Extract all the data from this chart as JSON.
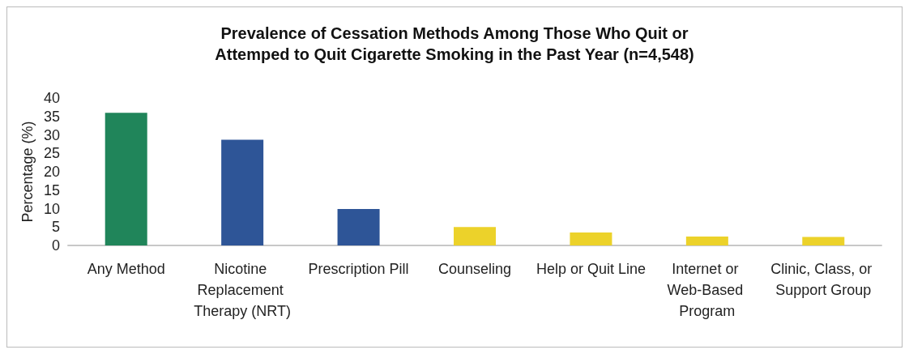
{
  "chart_data": {
    "type": "bar",
    "title": "Prevalence of Cessation Methods Among Those Who Quit or\nAttemped to Quit Cigarette Smoking in the Past Year (n=4,548)",
    "ylabel": "Percentage (%)",
    "categories": [
      "Any Method",
      "Nicotine Replacement Therapy (NRT)",
      "Prescription Pill",
      "Counseling",
      "Help or Quit Line",
      "Internet or Web-Based Program",
      "Clinic, Class, or Support Group"
    ],
    "values": [
      36,
      28.7,
      9.9,
      5,
      3.5,
      2.4,
      2.3
    ],
    "colors": [
      "#20855a",
      "#2e5597",
      "#2e5597",
      "#ecd22a",
      "#ecd22a",
      "#ecd22a",
      "#ecd22a"
    ],
    "ylim": [
      0,
      40
    ],
    "yticks": [
      0,
      5,
      10,
      15,
      20,
      25,
      30,
      35,
      40
    ],
    "grid": false
  }
}
